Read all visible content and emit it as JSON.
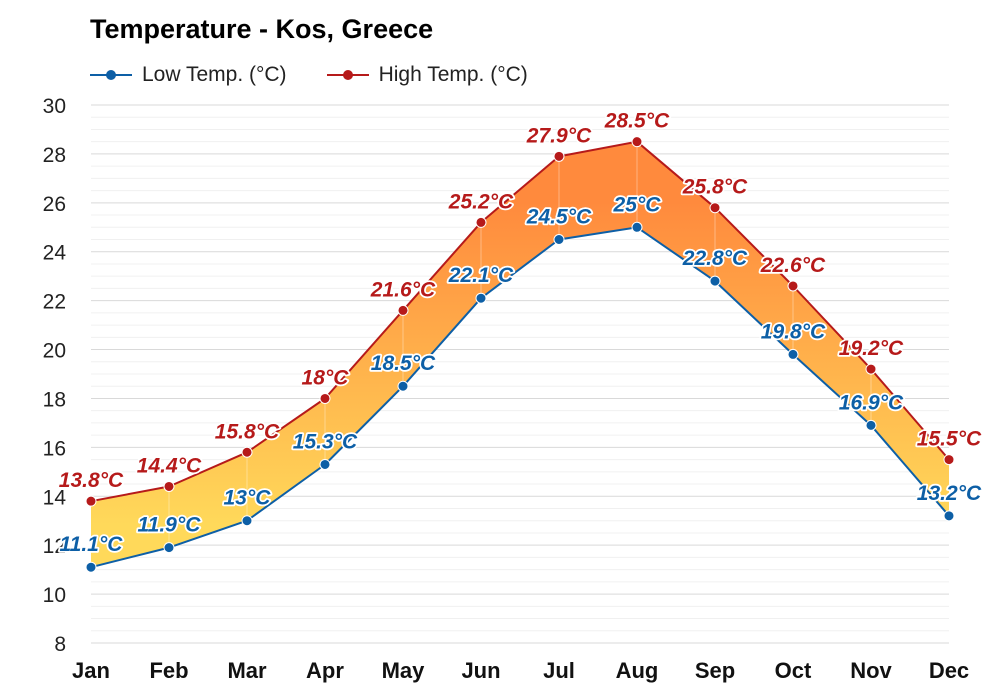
{
  "chart_data": {
    "type": "area",
    "title": "Temperature - Kos, Greece",
    "categories": [
      "Jan",
      "Feb",
      "Mar",
      "Apr",
      "May",
      "Jun",
      "Jul",
      "Aug",
      "Sep",
      "Oct",
      "Nov",
      "Dec"
    ],
    "series": [
      {
        "name": "Low Temp. (°C)",
        "color": "#0d5fa6",
        "values": [
          11.1,
          11.9,
          13,
          15.3,
          18.5,
          22.1,
          24.5,
          25,
          22.8,
          19.8,
          16.9,
          13.2
        ],
        "labels": [
          "11.1°C",
          "11.9°C",
          "13°C",
          "15.3°C",
          "18.5°C",
          "22.1°C",
          "24.5°C",
          "25°C",
          "22.8°C",
          "19.8°C",
          "16.9°C",
          "13.2°C"
        ]
      },
      {
        "name": "High Temp. (°C)",
        "color": "#b61a1a",
        "values": [
          13.8,
          14.4,
          15.8,
          18,
          21.6,
          25.2,
          27.9,
          28.5,
          25.8,
          22.6,
          19.2,
          15.5
        ],
        "labels": [
          "13.8°C",
          "14.4°C",
          "15.8°C",
          "18°C",
          "21.6°C",
          "25.2°C",
          "27.9°C",
          "28.5°C",
          "25.8°C",
          "22.6°C",
          "19.2°C",
          "15.5°C"
        ]
      }
    ],
    "ylim": [
      8,
      30
    ],
    "yticks": [
      "8",
      "10",
      "12",
      "14",
      "16",
      "18",
      "20",
      "22",
      "24",
      "26",
      "28",
      "30"
    ],
    "xlabel": "",
    "ylabel": "",
    "grid": true,
    "legend_position": "top-left",
    "fill_colors": {
      "cool": "#ffd95a",
      "warm": "#ff8a3d"
    }
  }
}
